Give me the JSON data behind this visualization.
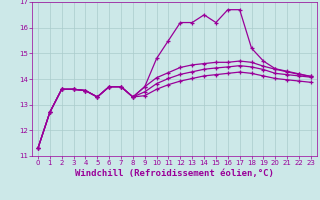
{
  "x": [
    0,
    1,
    2,
    3,
    4,
    5,
    6,
    7,
    8,
    9,
    10,
    11,
    12,
    13,
    14,
    15,
    16,
    17,
    18,
    19,
    20,
    21,
    22,
    23
  ],
  "line1": [
    11.3,
    12.7,
    13.6,
    13.6,
    13.55,
    13.3,
    13.7,
    13.7,
    13.3,
    13.7,
    14.8,
    15.5,
    16.2,
    16.2,
    16.5,
    16.2,
    16.7,
    16.7,
    15.2,
    14.7,
    14.4,
    14.3,
    14.2,
    14.1
  ],
  "line2": [
    11.3,
    12.7,
    13.6,
    13.6,
    13.55,
    13.3,
    13.7,
    13.7,
    13.3,
    13.7,
    14.05,
    14.25,
    14.45,
    14.55,
    14.6,
    14.65,
    14.65,
    14.7,
    14.65,
    14.5,
    14.38,
    14.28,
    14.18,
    14.1
  ],
  "line3": [
    11.3,
    12.7,
    13.6,
    13.6,
    13.55,
    13.3,
    13.7,
    13.7,
    13.3,
    13.5,
    13.82,
    14.02,
    14.18,
    14.28,
    14.38,
    14.43,
    14.47,
    14.52,
    14.47,
    14.37,
    14.22,
    14.17,
    14.12,
    14.07
  ],
  "line4": [
    11.3,
    12.7,
    13.6,
    13.6,
    13.55,
    13.3,
    13.7,
    13.7,
    13.3,
    13.35,
    13.6,
    13.78,
    13.92,
    14.02,
    14.12,
    14.17,
    14.22,
    14.27,
    14.22,
    14.12,
    14.02,
    13.97,
    13.92,
    13.87
  ],
  "line_color": "#990099",
  "bg_color": "#cce8e8",
  "grid_color": "#aacccc",
  "xlabel": "Windchill (Refroidissement éolien,°C)",
  "xlim": [
    -0.5,
    23.5
  ],
  "ylim": [
    11,
    17
  ],
  "yticks": [
    11,
    12,
    13,
    14,
    15,
    16,
    17
  ],
  "xticks": [
    0,
    1,
    2,
    3,
    4,
    5,
    6,
    7,
    8,
    9,
    10,
    11,
    12,
    13,
    14,
    15,
    16,
    17,
    18,
    19,
    20,
    21,
    22,
    23
  ]
}
